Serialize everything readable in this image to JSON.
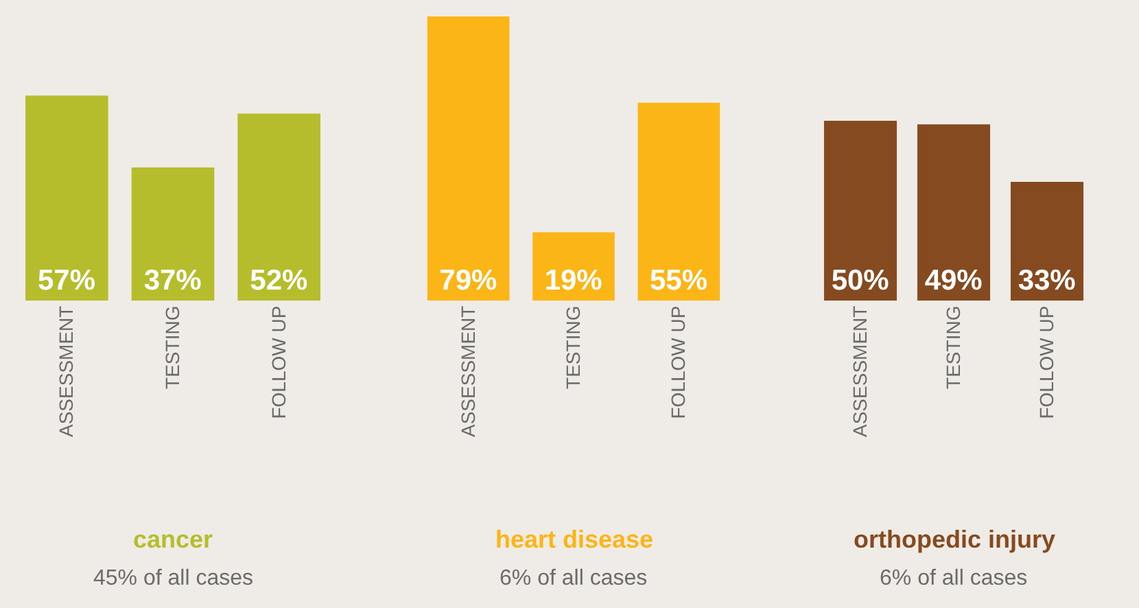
{
  "chart_data": [
    {
      "type": "bar",
      "title": "cancer",
      "subtitle": "45% of all cases",
      "categories": [
        "ASSESSMENT",
        "TESTING",
        "FOLLOW UP"
      ],
      "values": [
        57,
        37,
        52
      ],
      "value_labels": [
        "57%",
        "37%",
        "52%"
      ],
      "color": "#b5bd2d"
    },
    {
      "type": "bar",
      "title": "heart disease",
      "subtitle": "6% of all cases",
      "categories": [
        "ASSESSMENT",
        "TESTING",
        "FOLLOW UP"
      ],
      "values": [
        79,
        19,
        55
      ],
      "value_labels": [
        "79%",
        "19%",
        "55%"
      ],
      "color": "#fbb516"
    },
    {
      "type": "bar",
      "title": "orthopedic injury",
      "subtitle": "6% of all cases",
      "categories": [
        "ASSESSMENT",
        "TESTING",
        "FOLLOW UP"
      ],
      "values": [
        50,
        49,
        33
      ],
      "value_labels": [
        "50%",
        "49%",
        "33%"
      ],
      "color": "#854a20"
    }
  ]
}
